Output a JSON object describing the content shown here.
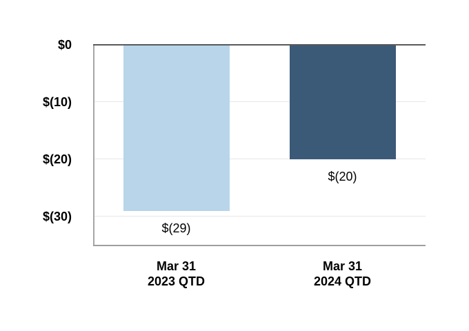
{
  "chart_data": {
    "type": "bar",
    "categories": [
      "Mar 31\n2023 QTD",
      "Mar 31\n2024 QTD"
    ],
    "values": [
      -29,
      -20
    ],
    "data_labels": [
      "$(29)",
      "$(20)"
    ],
    "bar_colors": [
      "#B8D5EA",
      "#3B5A78"
    ],
    "title": "",
    "xlabel": "",
    "ylabel": "",
    "legend": "none",
    "grid": true,
    "y_axis": {
      "ylim": [
        -35.2,
        0
      ],
      "ticks": [
        {
          "value": 0,
          "label": "$0"
        },
        {
          "value": -10,
          "label": "$(10)"
        },
        {
          "value": -20,
          "label": "$(20)"
        },
        {
          "value": -30,
          "label": "$(30)"
        }
      ]
    },
    "colors": {
      "gridline": "#E7E7E7",
      "zero_line": "#595959",
      "axis_line": "#A6A6A6",
      "bottom_line": "#9E9E9E",
      "text": "#000000",
      "background": "#FFFFFF"
    }
  }
}
